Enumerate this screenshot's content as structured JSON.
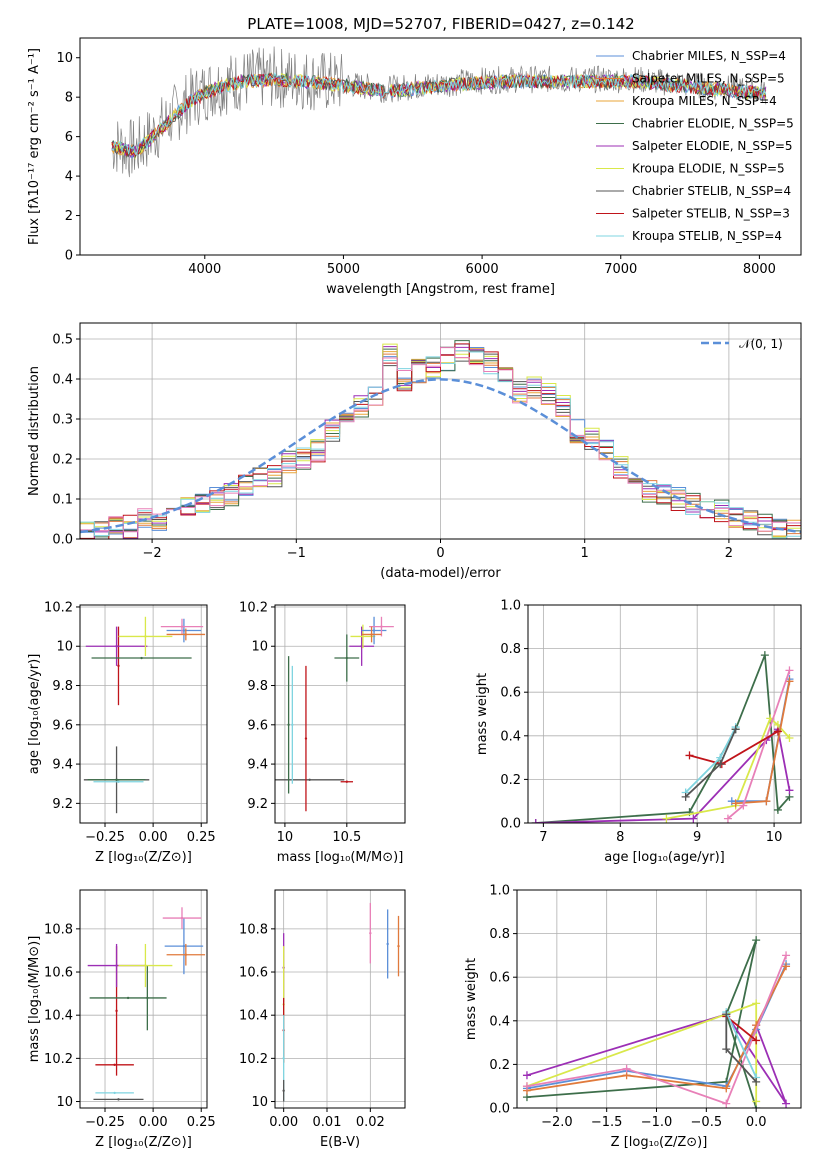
{
  "colors": {
    "miles_chabrier": "#5b8fd8",
    "miles_salpeter": "#e07a3c",
    "miles_kroupa": "#e8a63a",
    "elodie_chabrier": "#3d6e4a",
    "elodie_salpeter": "#9c2fb5",
    "elodie_kroupa": "#d9e84a",
    "stelib_chabrier": "#555555",
    "stelib_salpeter": "#c0141a",
    "stelib_kroupa": "#7fd4e0",
    "data": "#808080",
    "gauss": "#5b8fd8",
    "pink": "#e880b8",
    "green": "#4c7d59"
  },
  "chart_data": [
    {
      "id": "spectrum",
      "type": "line",
      "title": "PLATE=1008, MJD=52707, FIBERID=0427, z=0.142",
      "xlabel": "wavelength [Angstrom, rest frame]",
      "ylabel": "Flux [fλ10⁻¹⁷ erg cm⁻² s⁻¹ A⁻¹]",
      "xlim": [
        3100,
        8300
      ],
      "ylim": [
        0,
        11
      ],
      "xticks": [
        4000,
        5000,
        6000,
        7000,
        8000
      ],
      "yticks": [
        0,
        2,
        4,
        6,
        8,
        10
      ],
      "grid": false,
      "legend_position": "top-right",
      "continuum": {
        "x": [
          3350,
          3500,
          3700,
          3900,
          4000,
          4100,
          4300,
          4500,
          4700,
          5000,
          5300,
          5600,
          5900,
          6200,
          6500,
          6800,
          7100,
          7400,
          7700,
          8000
        ],
        "y": [
          5.6,
          5.3,
          6.6,
          7.9,
          8.3,
          8.6,
          8.9,
          9.0,
          8.9,
          8.7,
          8.4,
          8.6,
          8.8,
          8.9,
          8.9,
          8.9,
          8.9,
          8.7,
          8.5,
          8.3
        ]
      },
      "series": [
        {
          "name": "Chabrier MILES, N_SSP=4",
          "color_key": "miles_chabrier"
        },
        {
          "name": "Salpeter MILES, N_SSP=5",
          "color_key": "miles_salpeter"
        },
        {
          "name": "Kroupa MILES, N_SSP=4",
          "color_key": "miles_kroupa"
        },
        {
          "name": "Chabrier ELODIE, N_SSP=5",
          "color_key": "elodie_chabrier"
        },
        {
          "name": "Salpeter ELODIE, N_SSP=5",
          "color_key": "elodie_salpeter"
        },
        {
          "name": "Kroupa ELODIE, N_SSP=5",
          "color_key": "elodie_kroupa"
        },
        {
          "name": "Chabrier STELIB, N_SSP=4",
          "color_key": "stelib_chabrier"
        },
        {
          "name": "Salpeter STELIB, N_SSP=3",
          "color_key": "stelib_salpeter"
        },
        {
          "name": "Kroupa STELIB, N_SSP=4",
          "color_key": "stelib_kroupa"
        }
      ]
    },
    {
      "id": "residuals",
      "type": "line",
      "xlabel": "(data-model)/error",
      "ylabel": "Normed distribution",
      "xlim": [
        -2.5,
        2.5
      ],
      "ylim": [
        0,
        0.54
      ],
      "xticks": [
        -2,
        -1,
        0,
        1,
        2
      ],
      "yticks": [
        0.0,
        0.1,
        0.2,
        0.3,
        0.4,
        0.5
      ],
      "grid": true,
      "legend": "𝒩(0, 1)",
      "legend_position": "top-right",
      "histogram_bins": [
        -2.5,
        -2.4,
        -2.3,
        -2.2,
        -2.1,
        -2.0,
        -1.9,
        -1.8,
        -1.7,
        -1.6,
        -1.5,
        -1.4,
        -1.3,
        -1.2,
        -1.1,
        -1.0,
        -0.9,
        -0.8,
        -0.7,
        -0.6,
        -0.5,
        -0.4,
        -0.3,
        -0.2,
        -0.1,
        0.0,
        0.1,
        0.2,
        0.3,
        0.4,
        0.5,
        0.6,
        0.7,
        0.8,
        0.9,
        1.0,
        1.1,
        1.2,
        1.3,
        1.4,
        1.5,
        1.6,
        1.7,
        1.8,
        1.9,
        2.0,
        2.1,
        2.2,
        2.3,
        2.4
      ],
      "histogram_values": [
        0.02,
        0.02,
        0.03,
        0.03,
        0.05,
        0.05,
        0.06,
        0.08,
        0.09,
        0.1,
        0.11,
        0.13,
        0.15,
        0.16,
        0.19,
        0.2,
        0.22,
        0.27,
        0.3,
        0.33,
        0.36,
        0.46,
        0.4,
        0.42,
        0.43,
        0.45,
        0.47,
        0.45,
        0.44,
        0.4,
        0.37,
        0.38,
        0.36,
        0.33,
        0.27,
        0.25,
        0.22,
        0.18,
        0.16,
        0.12,
        0.11,
        0.1,
        0.09,
        0.08,
        0.07,
        0.05,
        0.05,
        0.04,
        0.03,
        0.02
      ]
    },
    {
      "id": "age_vs_Z",
      "type": "scatter",
      "xlabel": "Z [log₁₀(Z/Z⊙)]",
      "ylabel": "age  [log₁₀(age/yr)]",
      "xlim": [
        -0.38,
        0.28
      ],
      "ylim": [
        9.1,
        10.21
      ],
      "xticks": [
        -0.25,
        0.0,
        0.25
      ],
      "xtick_labels": [
        "−0.25",
        "0.00",
        "0.25"
      ],
      "yticks": [
        9.2,
        9.4,
        9.6,
        9.8,
        10.0,
        10.2
      ],
      "grid": true,
      "points": [
        {
          "x": -0.19,
          "y": 9.32,
          "xerr": 0.17,
          "yerr": 0.17,
          "color_key": "stelib_chabrier"
        },
        {
          "x": -0.19,
          "y": 9.32,
          "xerr": 0.15,
          "yerr": 0.0,
          "color_key": "elodie_chabrier"
        },
        {
          "x": -0.18,
          "y": 9.31,
          "xerr": 0.13,
          "yerr": 0.0,
          "color_key": "stelib_kroupa"
        },
        {
          "x": -0.18,
          "y": 9.9,
          "xerr": 0.0,
          "yerr": 0.2,
          "color_key": "stelib_salpeter"
        },
        {
          "x": -0.19,
          "y": 10.0,
          "xerr": 0.16,
          "yerr": 0.1,
          "color_key": "elodie_salpeter"
        },
        {
          "x": -0.06,
          "y": 9.94,
          "xerr": 0.26,
          "yerr": 0.0,
          "color_key": "elodie_chabrier"
        },
        {
          "x": -0.04,
          "y": 10.05,
          "xerr": 0.14,
          "yerr": 0.1,
          "color_key": "elodie_kroupa"
        },
        {
          "x": 0.16,
          "y": 10.08,
          "xerr": 0.09,
          "yerr": 0.06,
          "color_key": "miles_chabrier"
        },
        {
          "x": 0.15,
          "y": 10.1,
          "xerr": 0.11,
          "yerr": 0.04,
          "color_key": "pink"
        },
        {
          "x": 0.17,
          "y": 10.06,
          "xerr": 0.1,
          "yerr": 0.03,
          "color_key": "miles_salpeter"
        }
      ]
    },
    {
      "id": "age_vs_mass",
      "type": "scatter",
      "xlabel": "mass [log₁₀(M/M⊙)]",
      "xlim": [
        9.92,
        10.97
      ],
      "ylim": [
        9.1,
        10.21
      ],
      "xticks": [
        10.0,
        10.5
      ],
      "yticks": [
        9.2,
        9.4,
        9.6,
        9.8,
        10.0,
        10.2
      ],
      "grid": true,
      "points": [
        {
          "x": 10.2,
          "y": 9.32,
          "xerr": 0.28,
          "yerr": 0.0,
          "color_key": "stelib_chabrier"
        },
        {
          "x": 10.03,
          "y": 9.6,
          "xerr": 0.0,
          "yerr": 0.35,
          "color_key": "elodie_chabrier"
        },
        {
          "x": 10.06,
          "y": 9.6,
          "xerr": 0.0,
          "yerr": 0.3,
          "color_key": "stelib_kroupa"
        },
        {
          "x": 10.17,
          "y": 9.53,
          "xerr": 0.0,
          "yerr": 0.37,
          "color_key": "stelib_salpeter"
        },
        {
          "x": 10.5,
          "y": 9.31,
          "xerr": 0.05,
          "yerr": 0.0,
          "color_key": "stelib_salpeter"
        },
        {
          "x": 10.62,
          "y": 10.0,
          "xerr": 0.1,
          "yerr": 0.1,
          "color_key": "elodie_salpeter"
        },
        {
          "x": 10.5,
          "y": 9.94,
          "xerr": 0.1,
          "yerr": 0.12,
          "color_key": "elodie_chabrier"
        },
        {
          "x": 10.63,
          "y": 10.05,
          "xerr": 0.1,
          "yerr": 0.06,
          "color_key": "elodie_kroupa"
        },
        {
          "x": 10.72,
          "y": 10.08,
          "xerr": 0.1,
          "yerr": 0.07,
          "color_key": "miles_chabrier"
        },
        {
          "x": 10.78,
          "y": 10.1,
          "xerr": 0.1,
          "yerr": 0.05,
          "color_key": "pink"
        },
        {
          "x": 10.7,
          "y": 10.06,
          "xerr": 0.08,
          "yerr": 0.04,
          "color_key": "miles_salpeter"
        }
      ]
    },
    {
      "id": "weight_vs_age",
      "type": "line",
      "xlabel": "age  [log₁₀(age/yr)]",
      "ylabel": "mass weight",
      "xlim": [
        6.8,
        10.35
      ],
      "ylim": [
        0.0,
        1.0
      ],
      "xticks": [
        7,
        8,
        9,
        10
      ],
      "yticks": [
        0.0,
        0.2,
        0.4,
        0.6,
        0.8,
        1.0
      ],
      "grid": true,
      "series": [
        {
          "color_key": "elodie_chabrier",
          "x": [
            6.9,
            8.9,
            9.5,
            9.88,
            10.05,
            10.2
          ],
          "y": [
            0.0,
            0.05,
            0.43,
            0.77,
            0.06,
            0.12
          ]
        },
        {
          "color_key": "elodie_salpeter",
          "x": [
            6.9,
            8.95,
            9.9,
            10.05,
            10.2
          ],
          "y": [
            0.0,
            0.02,
            0.38,
            0.43,
            0.15
          ]
        },
        {
          "color_key": "elodie_kroupa",
          "x": [
            8.6,
            9.5,
            9.95,
            10.05,
            10.2
          ],
          "y": [
            0.02,
            0.08,
            0.48,
            0.45,
            0.39
          ]
        },
        {
          "color_key": "miles_chabrier",
          "x": [
            9.45,
            9.9,
            10.2
          ],
          "y": [
            0.1,
            0.1,
            0.66
          ]
        },
        {
          "color_key": "miles_salpeter",
          "x": [
            9.5,
            9.9,
            10.2
          ],
          "y": [
            0.09,
            0.1,
            0.65
          ]
        },
        {
          "color_key": "pink",
          "x": [
            9.4,
            9.6,
            10.2
          ],
          "y": [
            0.02,
            0.08,
            0.7
          ]
        },
        {
          "color_key": "stelib_salpeter",
          "x": [
            8.9,
            9.32,
            10.05
          ],
          "y": [
            0.31,
            0.27,
            0.42
          ]
        },
        {
          "color_key": "stelib_kroupa",
          "x": [
            8.85,
            9.3,
            9.5
          ],
          "y": [
            0.14,
            0.3,
            0.44
          ]
        },
        {
          "color_key": "stelib_chabrier",
          "x": [
            8.85,
            9.3,
            9.5
          ],
          "y": [
            0.12,
            0.27,
            0.43
          ]
        }
      ]
    },
    {
      "id": "mass_vs_Z",
      "type": "scatter",
      "xlabel": "Z [log₁₀(Z/Z⊙)]",
      "ylabel": "mass [log₁₀(M/M⊙)]",
      "xlim": [
        -0.38,
        0.28
      ],
      "ylim": [
        9.97,
        10.98
      ],
      "xticks": [
        -0.25,
        0.0,
        0.25
      ],
      "xtick_labels": [
        "−0.25",
        "0.00",
        "0.25"
      ],
      "yticks": [
        10.0,
        10.2,
        10.4,
        10.6,
        10.8
      ],
      "grid": true,
      "points": [
        {
          "x": -0.18,
          "y": 10.01,
          "xerr": 0.13,
          "yerr": 0.0,
          "color_key": "stelib_chabrier"
        },
        {
          "x": -0.2,
          "y": 10.04,
          "xerr": 0.1,
          "yerr": 0.0,
          "color_key": "stelib_kroupa"
        },
        {
          "x": -0.2,
          "y": 10.17,
          "xerr": 0.1,
          "yerr": 0.0,
          "color_key": "stelib_salpeter"
        },
        {
          "x": -0.19,
          "y": 10.42,
          "xerr": 0.0,
          "yerr": 0.3,
          "color_key": "stelib_salpeter"
        },
        {
          "x": -0.19,
          "y": 10.63,
          "xerr": 0.15,
          "yerr": 0.1,
          "color_key": "elodie_salpeter"
        },
        {
          "x": -0.13,
          "y": 10.48,
          "xerr": 0.2,
          "yerr": 0.0,
          "color_key": "elodie_chabrier"
        },
        {
          "x": -0.03,
          "y": 10.48,
          "xerr": 0.0,
          "yerr": 0.15,
          "color_key": "elodie_chabrier"
        },
        {
          "x": -0.04,
          "y": 10.63,
          "xerr": 0.14,
          "yerr": 0.1,
          "color_key": "elodie_kroupa"
        },
        {
          "x": 0.16,
          "y": 10.72,
          "xerr": 0.1,
          "yerr": 0.13,
          "color_key": "miles_chabrier"
        },
        {
          "x": 0.15,
          "y": 10.85,
          "xerr": 0.1,
          "yerr": 0.05,
          "color_key": "pink"
        },
        {
          "x": 0.17,
          "y": 10.68,
          "xerr": 0.1,
          "yerr": 0.05,
          "color_key": "miles_salpeter"
        }
      ]
    },
    {
      "id": "mass_vs_EBV",
      "type": "scatter",
      "xlabel": "E(B-V)",
      "xlim": [
        -0.002,
        0.028
      ],
      "ylim": [
        9.97,
        10.98
      ],
      "xticks": [
        0.0,
        0.01,
        0.02
      ],
      "xtick_labels": [
        "0.00",
        "0.01",
        "0.02"
      ],
      "yticks": [
        10.0,
        10.2,
        10.4,
        10.6,
        10.8
      ],
      "grid": true,
      "points": [
        {
          "x": 0.0,
          "y": 10.62,
          "xerr": 0.0,
          "yerr": 0.16,
          "color_key": "elodie_salpeter"
        },
        {
          "x": 0.0,
          "y": 10.45,
          "xerr": 0.0,
          "yerr": 0.27,
          "color_key": "elodie_kroupa"
        },
        {
          "x": 0.0,
          "y": 10.33,
          "xerr": 0.0,
          "yerr": 0.15,
          "color_key": "stelib_salpeter"
        },
        {
          "x": 0.0,
          "y": 10.2,
          "xerr": 0.0,
          "yerr": 0.2,
          "color_key": "stelib_kroupa"
        },
        {
          "x": 0.0,
          "y": 10.05,
          "xerr": 0.0,
          "yerr": 0.05,
          "color_key": "stelib_chabrier"
        },
        {
          "x": 0.02,
          "y": 10.78,
          "xerr": 0.0,
          "yerr": 0.14,
          "color_key": "pink"
        },
        {
          "x": 0.024,
          "y": 10.73,
          "xerr": 0.0,
          "yerr": 0.16,
          "color_key": "miles_chabrier"
        },
        {
          "x": 0.0265,
          "y": 10.72,
          "xerr": 0.0,
          "yerr": 0.14,
          "color_key": "miles_salpeter"
        }
      ]
    },
    {
      "id": "weight_vs_Z",
      "type": "line",
      "xlabel": "Z [log₁₀(Z/Z⊙)]",
      "ylabel": "mass weight",
      "xlim": [
        -2.4,
        0.45
      ],
      "ylim": [
        0.0,
        1.0
      ],
      "xticks": [
        -2.0,
        -1.5,
        -1.0,
        -0.5,
        0.0
      ],
      "xtick_labels": [
        "−2.0",
        "−1.5",
        "−1.0",
        "−0.5",
        "0.0"
      ],
      "yticks": [
        0.0,
        0.2,
        0.4,
        0.6,
        0.8,
        1.0
      ],
      "grid": true,
      "series": [
        {
          "color_key": "elodie_chabrier",
          "x": [
            -2.3,
            -0.3,
            0.0,
            -0.3,
            0.0
          ],
          "y": [
            0.05,
            0.12,
            0.77,
            0.43,
            0.0
          ]
        },
        {
          "color_key": "elodie_salpeter",
          "x": [
            -2.3,
            -0.3,
            0.3,
            0.0
          ],
          "y": [
            0.15,
            0.43,
            0.02,
            0.38
          ]
        },
        {
          "color_key": "elodie_kroupa",
          "x": [
            -2.3,
            0.0,
            0.0
          ],
          "y": [
            0.1,
            0.48,
            0.03
          ]
        },
        {
          "color_key": "miles_chabrier",
          "x": [
            -2.3,
            -1.3,
            -0.3,
            0.0,
            0.3
          ],
          "y": [
            0.09,
            0.17,
            0.1,
            0.36,
            0.66
          ]
        },
        {
          "color_key": "miles_salpeter",
          "x": [
            -2.3,
            -1.3,
            -0.3,
            0.0,
            0.3
          ],
          "y": [
            0.08,
            0.15,
            0.09,
            0.38,
            0.65
          ]
        },
        {
          "color_key": "pink",
          "x": [
            -2.3,
            -1.3,
            -0.3,
            0.3
          ],
          "y": [
            0.1,
            0.18,
            0.02,
            0.7
          ]
        },
        {
          "color_key": "stelib_salpeter",
          "x": [
            -0.3,
            0.0
          ],
          "y": [
            0.42,
            0.31
          ]
        },
        {
          "color_key": "stelib_kroupa",
          "x": [
            -0.3,
            0.0
          ],
          "y": [
            0.44,
            0.14
          ]
        },
        {
          "color_key": "stelib_chabrier",
          "x": [
            -0.3,
            -0.3,
            0.0
          ],
          "y": [
            0.43,
            0.27,
            0.12
          ]
        }
      ]
    }
  ]
}
